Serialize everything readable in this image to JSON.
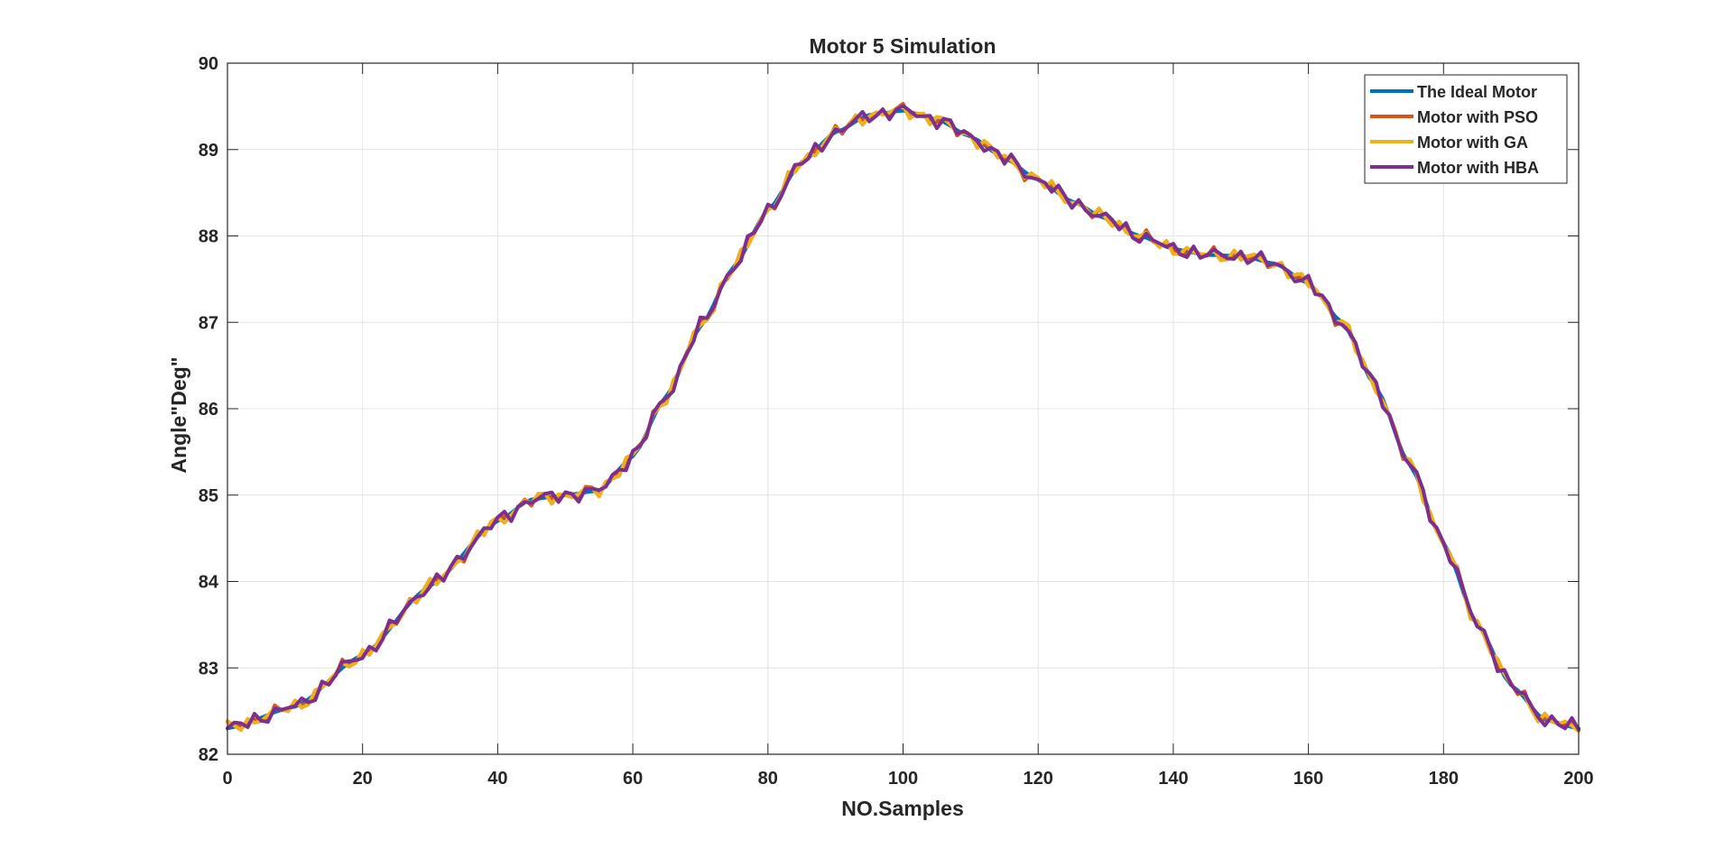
{
  "chart_data": {
    "type": "line",
    "title": "Motor 5 Simulation",
    "xlabel": "NO.Samples",
    "ylabel": "Angle\"Deg\"",
    "xlim": [
      0,
      200
    ],
    "ylim": [
      82,
      90
    ],
    "xticks": [
      0,
      20,
      40,
      60,
      80,
      100,
      120,
      140,
      160,
      180,
      200
    ],
    "yticks": [
      82,
      83,
      84,
      85,
      86,
      87,
      88,
      89,
      90
    ],
    "grid": true,
    "legend_position": "top-right",
    "ideal_points": [
      [
        0,
        82.3
      ],
      [
        10,
        82.55
      ],
      [
        20,
        83.15
      ],
      [
        30,
        83.95
      ],
      [
        40,
        84.7
      ],
      [
        45,
        84.95
      ],
      [
        50,
        85.0
      ],
      [
        55,
        85.05
      ],
      [
        60,
        85.45
      ],
      [
        65,
        86.15
      ],
      [
        70,
        86.95
      ],
      [
        75,
        87.65
      ],
      [
        80,
        88.3
      ],
      [
        85,
        88.85
      ],
      [
        90,
        89.2
      ],
      [
        95,
        89.4
      ],
      [
        100,
        89.45
      ],
      [
        105,
        89.35
      ],
      [
        110,
        89.15
      ],
      [
        115,
        88.9
      ],
      [
        120,
        88.65
      ],
      [
        125,
        88.4
      ],
      [
        130,
        88.2
      ],
      [
        135,
        88.0
      ],
      [
        140,
        87.85
      ],
      [
        145,
        87.78
      ],
      [
        150,
        87.77
      ],
      [
        155,
        87.68
      ],
      [
        160,
        87.45
      ],
      [
        165,
        87.0
      ],
      [
        170,
        86.25
      ],
      [
        175,
        85.35
      ],
      [
        180,
        84.45
      ],
      [
        185,
        83.5
      ],
      [
        190,
        82.8
      ],
      [
        195,
        82.4
      ],
      [
        200,
        82.3
      ]
    ],
    "series": [
      {
        "name": "The Ideal Motor",
        "color": "#0072BD",
        "width": 4,
        "noise_amp": 0,
        "noise_phase": 0
      },
      {
        "name": "Motor with PSO",
        "color": "#D95319",
        "width": 4,
        "noise_amp": 0.09,
        "noise_phase": 0.7
      },
      {
        "name": "Motor with GA",
        "color": "#EDB120",
        "width": 4,
        "noise_amp": 0.09,
        "noise_phase": 1.3
      },
      {
        "name": "Motor with HBA",
        "color": "#7E2F8E",
        "width": 4,
        "noise_amp": 0.1,
        "noise_phase": 0.0
      }
    ]
  }
}
